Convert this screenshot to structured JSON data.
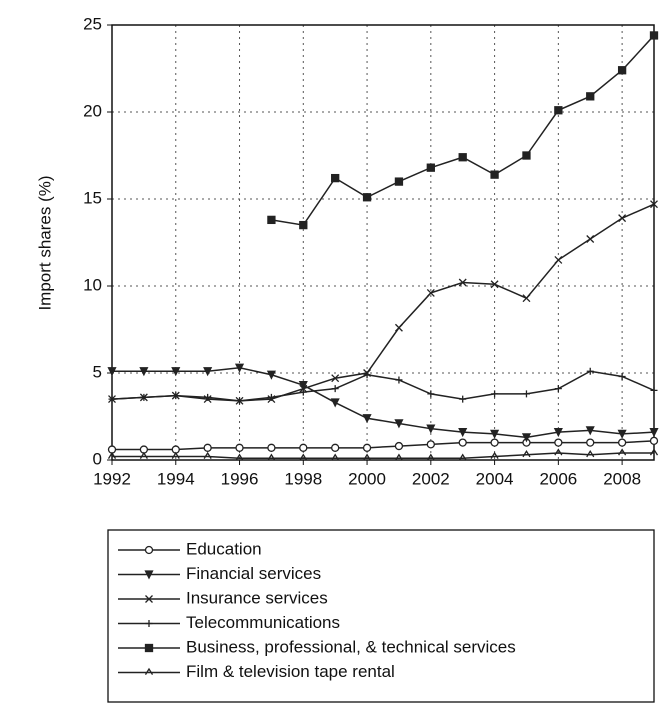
{
  "chart_data": {
    "type": "line",
    "y_label": "Import shares (%)",
    "x": [
      1992,
      1993,
      1994,
      1995,
      1996,
      1997,
      1998,
      1999,
      2000,
      2001,
      2002,
      2003,
      2004,
      2005,
      2006,
      2007,
      2008,
      2009
    ],
    "xlim": [
      1992,
      2009
    ],
    "xticks": [
      1992,
      1994,
      1996,
      1998,
      2000,
      2002,
      2004,
      2006,
      2008
    ],
    "ylim": [
      0,
      25
    ],
    "yticks": [
      0,
      5,
      10,
      15,
      20,
      25
    ],
    "grid": true,
    "legend": "below",
    "series": [
      {
        "name": "Education",
        "color": "#222",
        "marker": "circle",
        "values": [
          0.6,
          0.6,
          0.6,
          0.7,
          0.7,
          0.7,
          0.7,
          0.7,
          0.7,
          0.8,
          0.9,
          1.0,
          1.0,
          1.0,
          1.0,
          1.0,
          1.0,
          1.1
        ]
      },
      {
        "name": "Financial services",
        "color": "#222",
        "marker": "triangle-down",
        "values": [
          5.1,
          5.1,
          5.1,
          5.1,
          5.3,
          4.9,
          4.3,
          3.3,
          2.4,
          2.1,
          1.8,
          1.6,
          1.5,
          1.3,
          1.6,
          1.7,
          1.5,
          1.6
        ]
      },
      {
        "name": "Insurance services",
        "color": "#222",
        "marker": "x",
        "values": [
          3.5,
          3.6,
          3.7,
          3.5,
          3.4,
          3.5,
          4.1,
          4.7,
          5.0,
          7.6,
          9.6,
          10.2,
          10.1,
          9.3,
          11.5,
          12.7,
          13.9,
          14.7
        ]
      },
      {
        "name": "Telecommunications",
        "color": "#222",
        "marker": "plus",
        "values": [
          3.5,
          3.6,
          3.7,
          3.6,
          3.4,
          3.6,
          3.9,
          4.1,
          4.9,
          4.6,
          3.8,
          3.5,
          3.8,
          3.8,
          4.1,
          5.1,
          4.8,
          4.0
        ]
      },
      {
        "name": "Business, professional, & technical services",
        "color": "#222",
        "marker": "square",
        "values": [
          null,
          null,
          null,
          null,
          null,
          13.8,
          13.5,
          16.2,
          15.1,
          16.0,
          16.8,
          17.4,
          16.4,
          17.5,
          20.1,
          20.9,
          22.4,
          24.4
        ]
      },
      {
        "name": "Film & television tape rental",
        "color": "#222",
        "marker": "star",
        "values": [
          0.2,
          0.2,
          0.2,
          0.2,
          0.1,
          0.1,
          0.1,
          0.1,
          0.1,
          0.1,
          0.1,
          0.1,
          0.2,
          0.3,
          0.4,
          0.3,
          0.4,
          0.4
        ]
      }
    ]
  }
}
